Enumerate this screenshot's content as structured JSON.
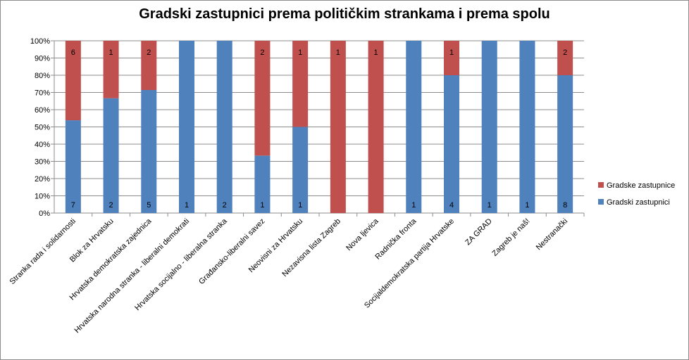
{
  "chart_data": {
    "type": "bar",
    "stacked": "percent",
    "title": "Gradski zastupnici prema političkim strankama i prema spolu",
    "xlabel": "",
    "ylabel": "",
    "ylim": [
      0,
      1
    ],
    "yticks": [
      "0%",
      "10%",
      "20%",
      "30%",
      "40%",
      "50%",
      "60%",
      "70%",
      "80%",
      "90%",
      "100%"
    ],
    "grid": true,
    "legend_position": "right",
    "categories": [
      "Stranka rada i solidarnosti",
      "Blok za Hrvatsku",
      "Hrvatska demokratska zajednica",
      "Hrvatska narodna stranka - liberalni demokrati",
      "Hrvatska socijalno - liberalna stranka",
      "Građansko-liberalni savez",
      "Neovisni za Hrvatsku",
      "Nezavisna lista Zagreb",
      "Nova ljevica",
      "Radnička fronta",
      "Socijaldemokratska partija Hrvatske",
      "ZA GRAD",
      "Zagreb je naš!",
      "Nestranački"
    ],
    "series": [
      {
        "name": "Gradski zastupnici",
        "color": "#4f81bd",
        "values": [
          7,
          2,
          5,
          1,
          2,
          1,
          1,
          0,
          0,
          1,
          4,
          1,
          1,
          8
        ]
      },
      {
        "name": "Gradske zastupnice",
        "color": "#c0504d",
        "values": [
          6,
          1,
          2,
          0,
          0,
          2,
          1,
          1,
          1,
          0,
          1,
          0,
          0,
          2
        ]
      }
    ],
    "legend_order": [
      "Gradske zastupnice",
      "Gradski zastupnici"
    ]
  }
}
